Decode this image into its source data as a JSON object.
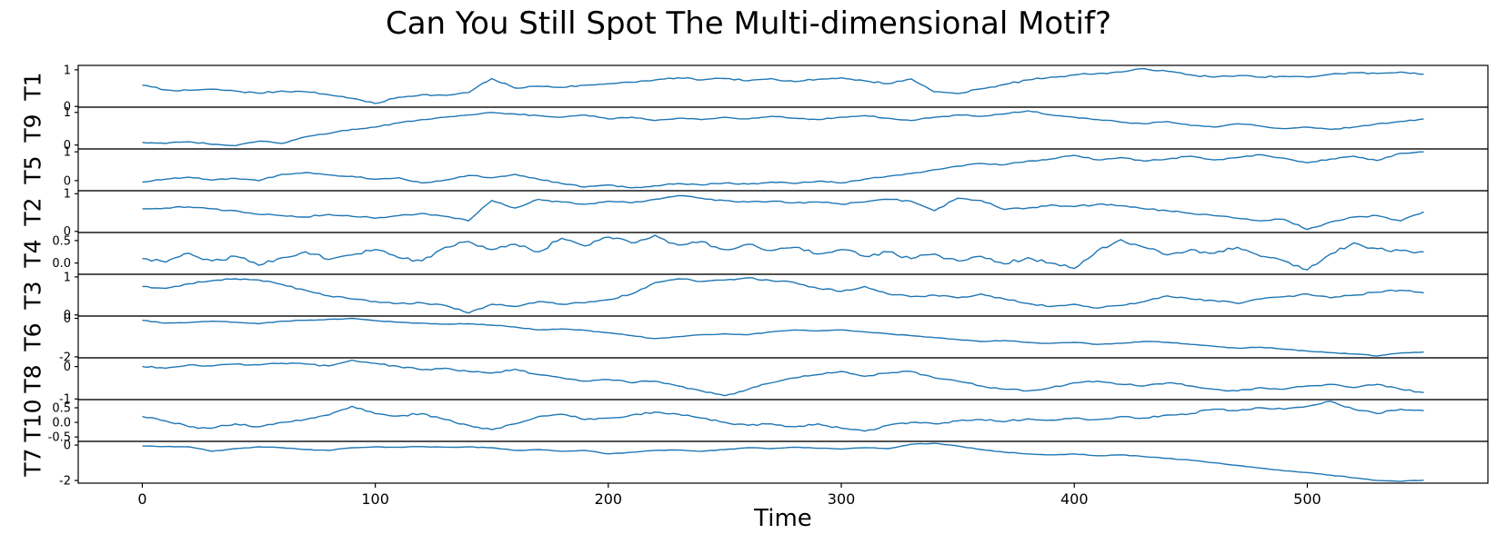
{
  "chart_data": {
    "type": "line",
    "title": "Can You Still Spot The Multi-dimensional Motif?",
    "xlabel": "Time",
    "xlim": [
      -27.5,
      577.5
    ],
    "xticks": [
      0,
      100,
      200,
      300,
      400,
      500
    ],
    "x_start": 0,
    "x_step": 10,
    "grid": false,
    "legend": "none",
    "line_color": "#1f77b4",
    "panels": [
      {
        "label": "T1",
        "yticks": [
          "0",
          "1"
        ],
        "ytick_vals": [
          0,
          1
        ],
        "ylim": [
          -0.02,
          1.12
        ],
        "noise": 0.025,
        "values": [
          0.58,
          0.45,
          0.44,
          0.47,
          0.42,
          0.36,
          0.42,
          0.4,
          0.32,
          0.22,
          0.08,
          0.25,
          0.32,
          0.3,
          0.38,
          0.76,
          0.5,
          0.55,
          0.52,
          0.58,
          0.62,
          0.66,
          0.72,
          0.78,
          0.72,
          0.76,
          0.7,
          0.76,
          0.68,
          0.74,
          0.78,
          0.7,
          0.62,
          0.75,
          0.4,
          0.35,
          0.48,
          0.6,
          0.72,
          0.8,
          0.86,
          0.9,
          0.94,
          1.03,
          0.96,
          0.86,
          0.8,
          0.84,
          0.8,
          0.82,
          0.8,
          0.88,
          0.92,
          0.9,
          0.94,
          0.88
        ]
      },
      {
        "label": "T9",
        "yticks": [
          "0",
          "1"
        ],
        "ytick_vals": [
          0,
          1
        ],
        "ylim": [
          -0.12,
          1.16
        ],
        "noise": 0.02,
        "values": [
          0.08,
          0.05,
          0.1,
          0.02,
          -0.02,
          0.12,
          0.05,
          0.25,
          0.35,
          0.48,
          0.55,
          0.68,
          0.78,
          0.85,
          0.92,
          1.0,
          0.95,
          0.9,
          0.85,
          0.92,
          0.8,
          0.85,
          0.75,
          0.82,
          0.78,
          0.85,
          0.8,
          0.88,
          0.82,
          0.78,
          0.85,
          0.9,
          0.82,
          0.75,
          0.85,
          0.92,
          0.88,
          0.95,
          1.05,
          0.92,
          0.85,
          0.78,
          0.7,
          0.65,
          0.72,
          0.6,
          0.55,
          0.65,
          0.58,
          0.5,
          0.55,
          0.48,
          0.55,
          0.65,
          0.72,
          0.8
        ]
      },
      {
        "label": "T5",
        "yticks": [
          "0",
          "1"
        ],
        "ytick_vals": [
          0,
          1
        ],
        "ylim": [
          -0.35,
          1.1
        ],
        "noise": 0.025,
        "values": [
          -0.05,
          0.05,
          0.12,
          0.02,
          0.08,
          0.0,
          0.22,
          0.28,
          0.2,
          0.15,
          0.05,
          0.1,
          -0.08,
          0.02,
          0.18,
          0.1,
          0.22,
          0.05,
          -0.1,
          -0.22,
          -0.15,
          -0.25,
          -0.18,
          -0.1,
          -0.15,
          -0.08,
          -0.12,
          -0.05,
          -0.1,
          -0.02,
          -0.08,
          0.05,
          0.15,
          0.25,
          0.38,
          0.5,
          0.6,
          0.55,
          0.68,
          0.75,
          0.88,
          0.72,
          0.8,
          0.68,
          0.75,
          0.85,
          0.72,
          0.8,
          0.9,
          0.78,
          0.62,
          0.75,
          0.85,
          0.7,
          0.95,
          1.0
        ]
      },
      {
        "label": "T2",
        "yticks": [
          "0",
          "1"
        ],
        "ytick_vals": [
          0,
          1
        ],
        "ylim": [
          -0.03,
          1.08
        ],
        "noise": 0.025,
        "values": [
          0.6,
          0.62,
          0.65,
          0.6,
          0.55,
          0.45,
          0.42,
          0.38,
          0.45,
          0.4,
          0.35,
          0.42,
          0.48,
          0.4,
          0.28,
          0.82,
          0.62,
          0.85,
          0.78,
          0.72,
          0.8,
          0.76,
          0.85,
          0.95,
          0.88,
          0.82,
          0.78,
          0.8,
          0.76,
          0.78,
          0.72,
          0.78,
          0.85,
          0.8,
          0.55,
          0.88,
          0.82,
          0.58,
          0.62,
          0.7,
          0.66,
          0.72,
          0.68,
          0.6,
          0.55,
          0.48,
          0.42,
          0.35,
          0.28,
          0.32,
          0.05,
          0.25,
          0.38,
          0.42,
          0.28,
          0.52
        ]
      },
      {
        "label": "T4",
        "yticks": [
          "0.0",
          "0.5"
        ],
        "ytick_vals": [
          0.0,
          0.5
        ],
        "ylim": [
          -0.25,
          0.68
        ],
        "noise": 0.045,
        "values": [
          0.1,
          0.02,
          0.22,
          0.05,
          0.15,
          -0.05,
          0.12,
          0.25,
          0.08,
          0.18,
          0.3,
          0.12,
          0.05,
          0.35,
          0.48,
          0.3,
          0.42,
          0.25,
          0.55,
          0.38,
          0.58,
          0.45,
          0.62,
          0.4,
          0.48,
          0.3,
          0.42,
          0.28,
          0.35,
          0.2,
          0.3,
          0.15,
          0.25,
          0.1,
          0.2,
          0.05,
          0.15,
          -0.02,
          0.12,
          0.0,
          -0.12,
          0.28,
          0.52,
          0.35,
          0.18,
          0.3,
          0.22,
          0.35,
          0.15,
          0.05,
          -0.15,
          0.2,
          0.45,
          0.32,
          0.28,
          0.25
        ]
      },
      {
        "label": "T3",
        "yticks": [
          "0",
          "1"
        ],
        "ytick_vals": [
          0,
          1
        ],
        "ylim": [
          -0.03,
          1.07
        ],
        "noise": 0.025,
        "values": [
          0.75,
          0.7,
          0.82,
          0.9,
          0.95,
          0.92,
          0.8,
          0.65,
          0.5,
          0.42,
          0.35,
          0.3,
          0.32,
          0.25,
          0.05,
          0.28,
          0.22,
          0.35,
          0.28,
          0.32,
          0.4,
          0.55,
          0.85,
          0.95,
          0.88,
          0.92,
          0.98,
          0.9,
          0.85,
          0.7,
          0.62,
          0.75,
          0.55,
          0.48,
          0.52,
          0.45,
          0.55,
          0.42,
          0.3,
          0.22,
          0.28,
          0.18,
          0.25,
          0.35,
          0.5,
          0.42,
          0.38,
          0.3,
          0.42,
          0.48,
          0.55,
          0.45,
          0.52,
          0.6,
          0.65,
          0.58
        ]
      },
      {
        "label": "T6",
        "yticks": [
          "-2",
          "0"
        ],
        "ytick_vals": [
          -2,
          0
        ],
        "ylim": [
          -2.05,
          0.12
        ],
        "noise": 0.02,
        "values": [
          -0.1,
          -0.25,
          -0.22,
          -0.15,
          -0.2,
          -0.28,
          -0.15,
          -0.1,
          -0.05,
          0.0,
          -0.12,
          -0.2,
          -0.25,
          -0.3,
          -0.28,
          -0.35,
          -0.45,
          -0.6,
          -0.55,
          -0.62,
          -0.75,
          -0.9,
          -1.05,
          -0.95,
          -0.85,
          -0.8,
          -0.85,
          -0.7,
          -0.6,
          -0.65,
          -0.6,
          -0.7,
          -0.8,
          -0.9,
          -1.0,
          -1.1,
          -1.2,
          -1.15,
          -1.25,
          -1.3,
          -1.25,
          -1.35,
          -1.3,
          -1.2,
          -1.25,
          -1.35,
          -1.45,
          -1.55,
          -1.5,
          -1.6,
          -1.7,
          -1.78,
          -1.85,
          -1.95,
          -1.8,
          -1.75
        ]
      },
      {
        "label": "T8",
        "yticks": [
          "-1",
          "0"
        ],
        "ytick_vals": [
          -1,
          0
        ],
        "ylim": [
          -1.02,
          0.27
        ],
        "noise": 0.03,
        "values": [
          0.0,
          -0.05,
          0.05,
          0.02,
          0.08,
          0.05,
          0.1,
          0.08,
          0.02,
          0.2,
          0.1,
          0.0,
          -0.1,
          -0.05,
          -0.15,
          -0.2,
          -0.08,
          -0.25,
          -0.35,
          -0.45,
          -0.4,
          -0.5,
          -0.45,
          -0.6,
          -0.75,
          -0.9,
          -0.7,
          -0.5,
          -0.35,
          -0.25,
          -0.15,
          -0.3,
          -0.2,
          -0.15,
          -0.35,
          -0.45,
          -0.6,
          -0.7,
          -0.75,
          -0.65,
          -0.5,
          -0.45,
          -0.55,
          -0.6,
          -0.5,
          -0.6,
          -0.7,
          -0.75,
          -0.65,
          -0.7,
          -0.6,
          -0.55,
          -0.65,
          -0.55,
          -0.7,
          -0.8
        ]
      },
      {
        "label": "T10",
        "yticks": [
          "-0.5",
          "0.0",
          "0.5"
        ],
        "ytick_vals": [
          -0.5,
          0.0,
          0.5
        ],
        "ylim": [
          -0.65,
          0.78
        ],
        "noise": 0.04,
        "values": [
          0.2,
          0.05,
          -0.15,
          -0.2,
          -0.05,
          -0.15,
          0.0,
          0.1,
          0.25,
          0.55,
          0.3,
          0.22,
          0.3,
          0.1,
          -0.1,
          -0.25,
          -0.05,
          0.2,
          0.28,
          0.1,
          0.15,
          0.25,
          0.35,
          0.28,
          0.15,
          0.0,
          -0.1,
          -0.05,
          -0.15,
          -0.05,
          -0.2,
          -0.3,
          -0.1,
          0.0,
          -0.05,
          0.05,
          0.1,
          0.02,
          0.12,
          0.08,
          0.15,
          0.1,
          0.2,
          0.15,
          0.25,
          0.3,
          0.45,
          0.4,
          0.5,
          0.45,
          0.55,
          0.72,
          0.45,
          0.3,
          0.45,
          0.4
        ]
      },
      {
        "label": "T7",
        "yticks": [
          "-2",
          "0"
        ],
        "ytick_vals": [
          -2,
          0
        ],
        "ylim": [
          -2.15,
          0.21
        ],
        "noise": 0.02,
        "values": [
          -0.05,
          -0.08,
          -0.1,
          -0.35,
          -0.2,
          -0.1,
          -0.15,
          -0.25,
          -0.3,
          -0.15,
          -0.1,
          -0.12,
          -0.08,
          -0.12,
          -0.1,
          -0.15,
          -0.3,
          -0.25,
          -0.35,
          -0.3,
          -0.5,
          -0.4,
          -0.3,
          -0.28,
          -0.35,
          -0.25,
          -0.15,
          -0.2,
          -0.12,
          -0.18,
          -0.22,
          -0.15,
          -0.2,
          0.05,
          0.1,
          -0.05,
          -0.25,
          -0.4,
          -0.5,
          -0.55,
          -0.5,
          -0.6,
          -0.55,
          -0.65,
          -0.75,
          -0.85,
          -1.0,
          -1.15,
          -1.3,
          -1.45,
          -1.55,
          -1.7,
          -1.85,
          -2.0,
          -2.05,
          -1.98
        ]
      }
    ]
  }
}
